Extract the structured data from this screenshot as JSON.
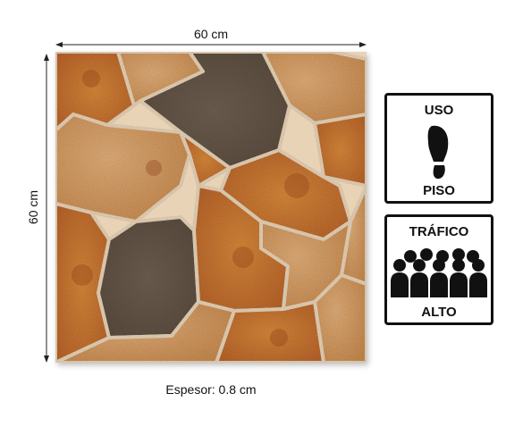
{
  "dimensions": {
    "width_label": "60 cm",
    "height_label": "60 cm"
  },
  "caption": "Espesor: 0.8 cm",
  "badges": [
    {
      "top": "USO",
      "bottom": "PISO",
      "icon": "footprint-icon"
    },
    {
      "top": "TRÁFICO",
      "bottom": "ALTO",
      "icon": "crowd-icon"
    }
  ],
  "colors": {
    "stone_orange": "#c8742e",
    "stone_tan": "#d9a066",
    "stone_grey": "#6b5a4a",
    "grout": "#e9d3b6"
  }
}
